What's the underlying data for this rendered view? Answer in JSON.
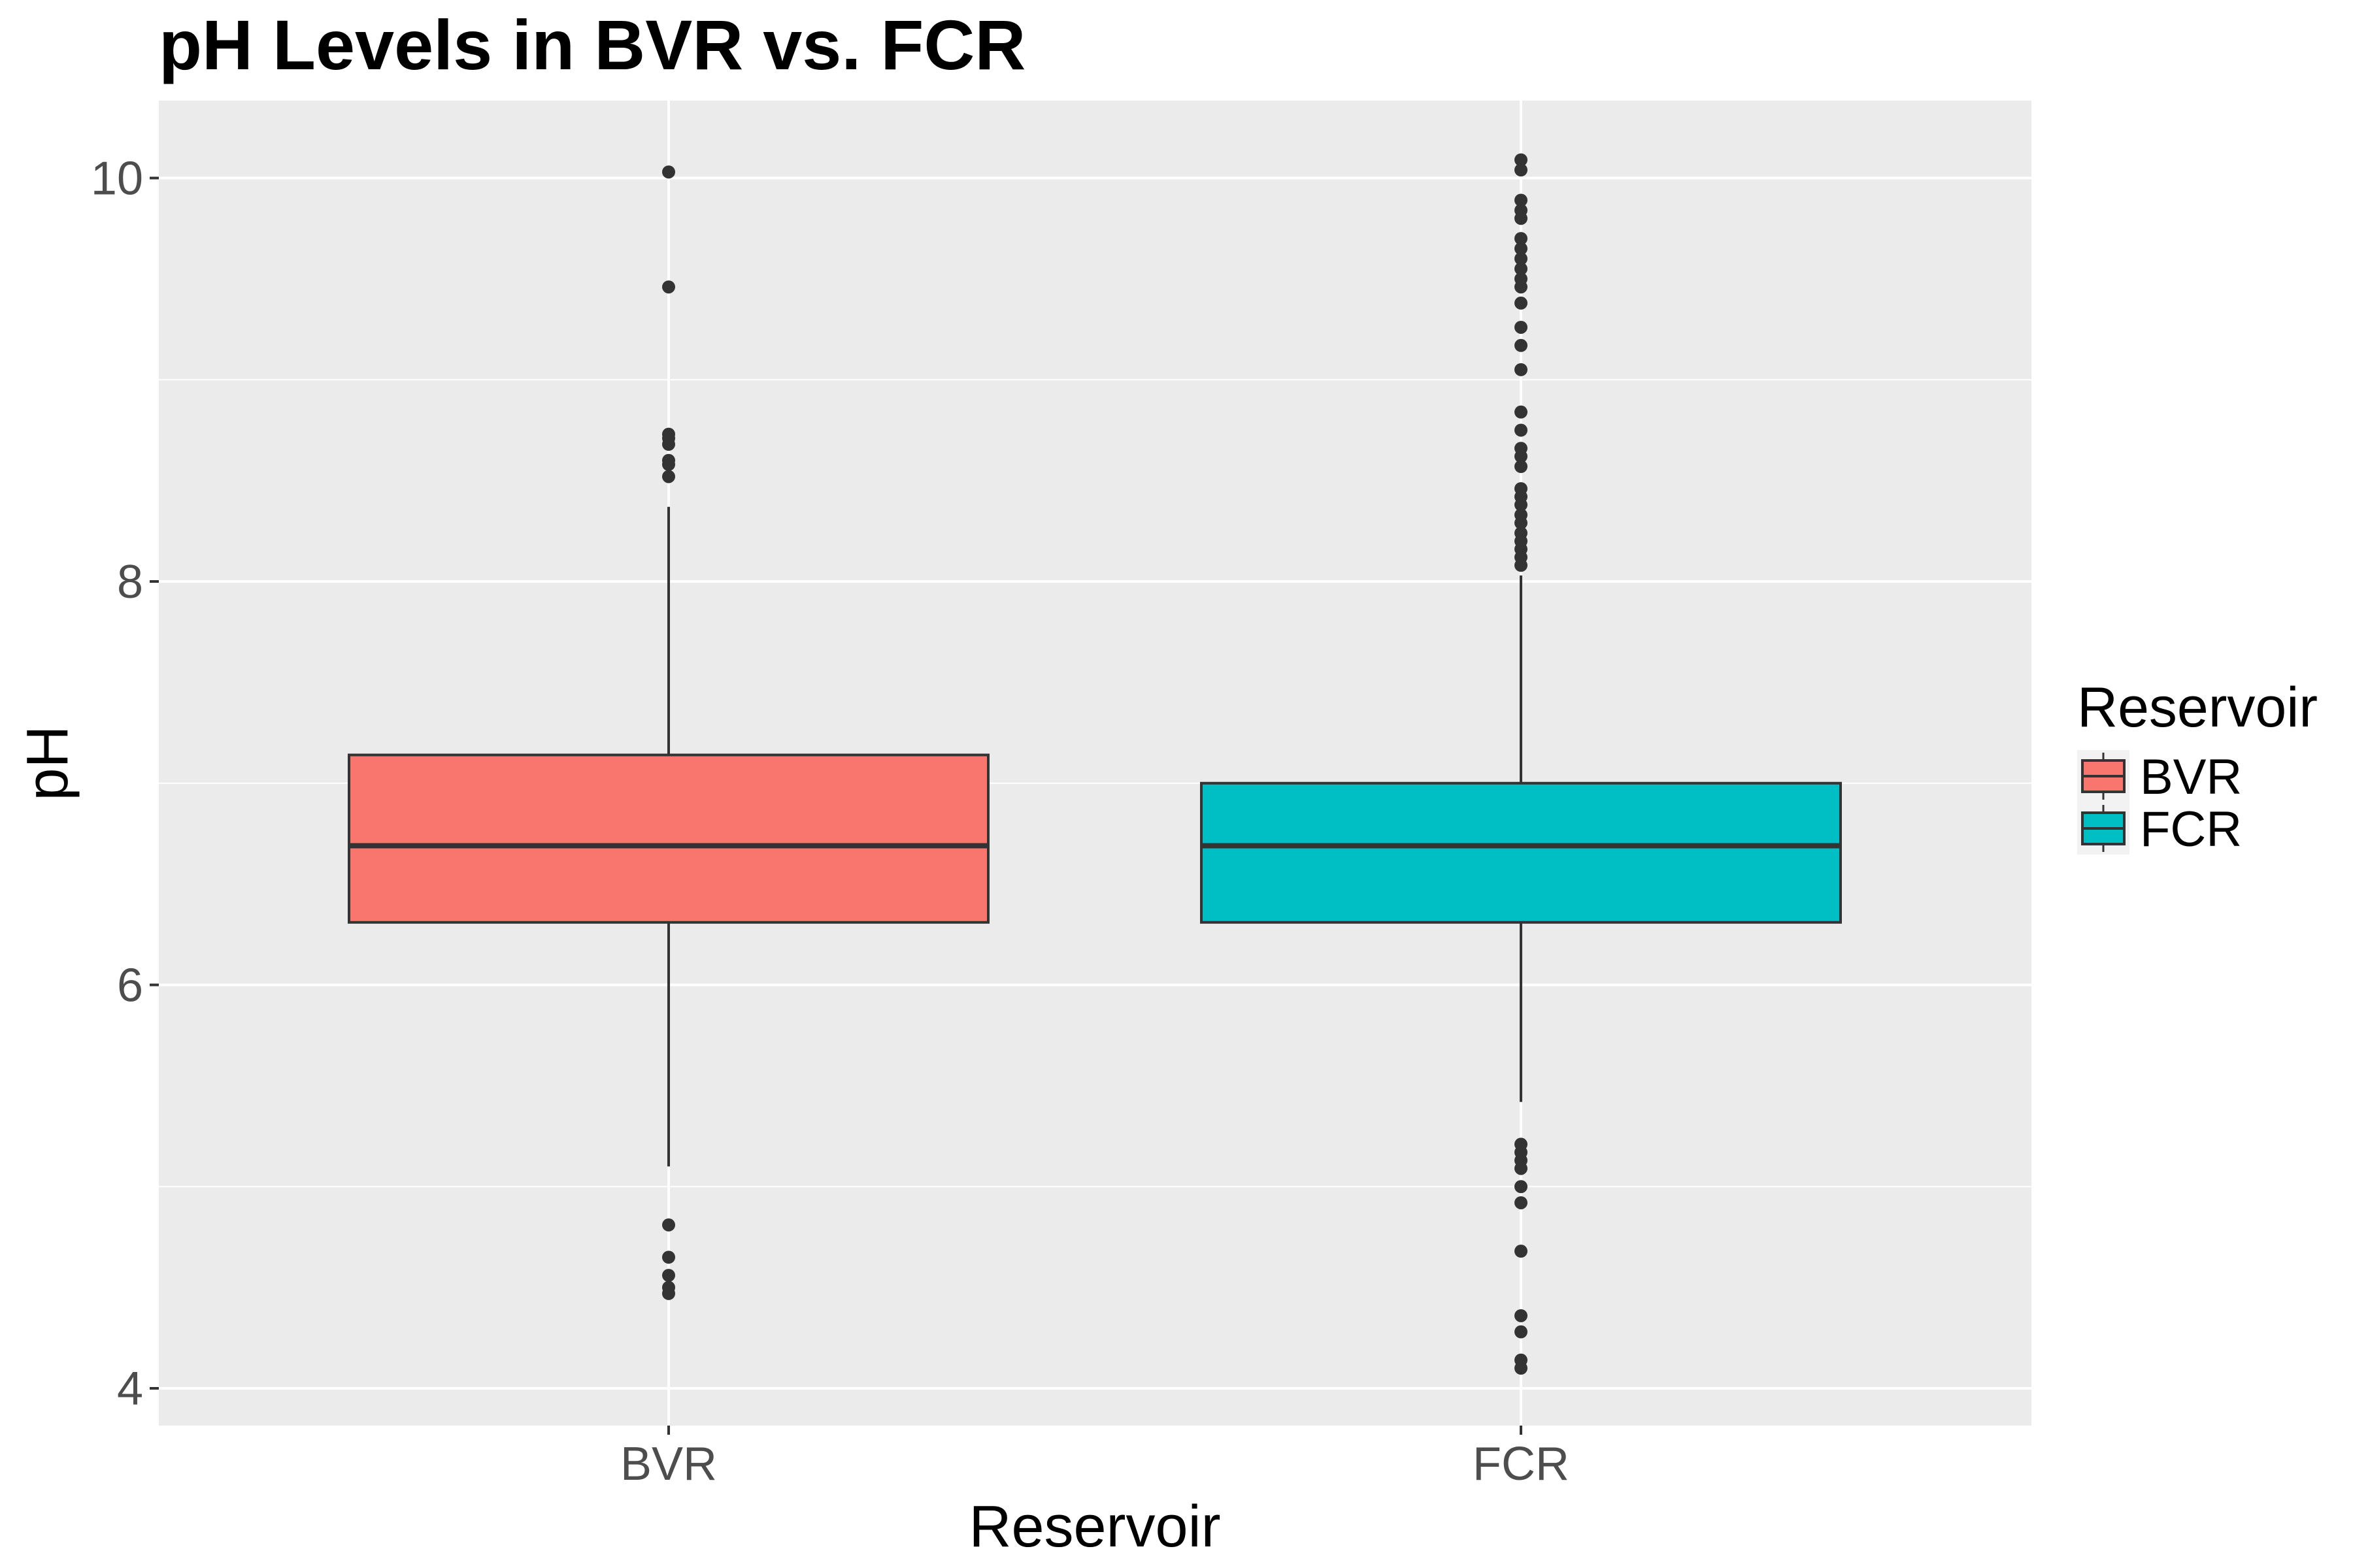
{
  "chart_data": {
    "type": "boxplot",
    "title": "pH Levels in BVR vs. FCR",
    "xlabel": "Reservoir",
    "ylabel": "pH",
    "ylim": [
      3.8,
      10.4
    ],
    "yticks": [
      4,
      6,
      8,
      10
    ],
    "grid": true,
    "legend": {
      "title": "Reservoir",
      "placement": "right",
      "entries": [
        "BVR",
        "FCR"
      ]
    },
    "categories": [
      "BVR",
      "FCR"
    ],
    "series": [
      {
        "name": "BVR",
        "color": "#F8766D",
        "whisker_low": 5.1,
        "q1": 6.31,
        "median": 6.69,
        "q3": 7.14,
        "whisker_high": 8.37,
        "outliers": [
          10.03,
          9.46,
          8.73,
          8.71,
          8.68,
          8.6,
          8.58,
          8.52,
          4.81,
          4.65,
          4.56,
          4.5,
          4.47
        ]
      },
      {
        "name": "FCR",
        "color": "#00BFC4",
        "whisker_low": 5.42,
        "q1": 6.31,
        "median": 6.69,
        "q3": 7.0,
        "whisker_high": 8.03,
        "outliers": [
          10.09,
          10.04,
          9.89,
          9.84,
          9.8,
          9.7,
          9.65,
          9.6,
          9.55,
          9.5,
          9.46,
          9.38,
          9.26,
          9.17,
          9.05,
          8.84,
          8.75,
          8.66,
          8.62,
          8.57,
          8.46,
          8.42,
          8.38,
          8.33,
          8.29,
          8.24,
          8.2,
          8.16,
          8.12,
          8.08,
          5.21,
          5.17,
          5.13,
          5.09,
          5.0,
          4.92,
          4.68,
          4.36,
          4.28,
          4.14,
          4.1
        ]
      }
    ]
  }
}
